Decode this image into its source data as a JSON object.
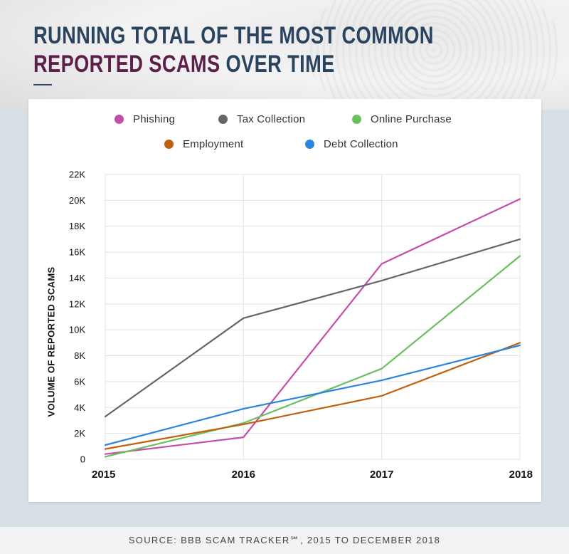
{
  "header": {
    "title_line1": "RUNNING TOTAL OF THE MOST COMMON",
    "title_highlight": "REPORTED SCAMS",
    "title_rest": " OVER TIME",
    "title_color": "#2a4460",
    "highlight_color": "#5c1f4a"
  },
  "footer": {
    "source": "SOURCE: BBB SCAM TRACKER℠, 2015 TO DECEMBER 2018"
  },
  "chart_data": {
    "type": "line",
    "x": [
      "2015",
      "2016",
      "2017",
      "2018"
    ],
    "ylabel": "VOLUME OF REPORTED SCAMS",
    "ylim": [
      0,
      22000
    ],
    "yticks": [
      0,
      2000,
      4000,
      6000,
      8000,
      10000,
      12000,
      14000,
      16000,
      18000,
      20000,
      22000
    ],
    "ytick_labels": [
      "0",
      "2K",
      "4K",
      "6K",
      "8K",
      "10K",
      "12K",
      "14K",
      "16K",
      "18K",
      "20K",
      "22K"
    ],
    "grid": true,
    "legend_position": "top",
    "series": [
      {
        "name": "Phishing",
        "color": "#c44daa",
        "values": [
          400,
          1700,
          15100,
          20100
        ]
      },
      {
        "name": "Tax Collection",
        "color": "#666666",
        "values": [
          3300,
          10900,
          13800,
          17000
        ]
      },
      {
        "name": "Online Purchase",
        "color": "#6abf5e",
        "values": [
          200,
          2800,
          7000,
          15700
        ]
      },
      {
        "name": "Employment",
        "color": "#c0600e",
        "values": [
          800,
          2700,
          4900,
          9000
        ]
      },
      {
        "name": "Debt Collection",
        "color": "#2b86de",
        "values": [
          1100,
          3900,
          6100,
          8800
        ]
      }
    ]
  }
}
